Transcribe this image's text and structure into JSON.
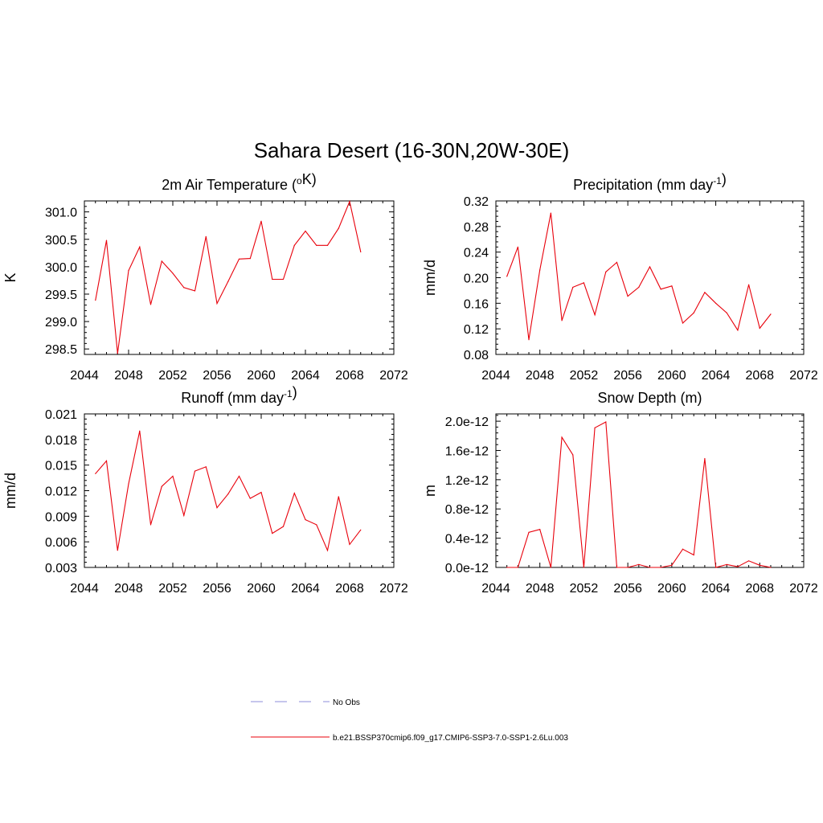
{
  "title": "Sahara Desert (16-30N,20W-30E)",
  "chart_data": [
    {
      "type": "line",
      "title": "2m Air Temperature (",
      "title_sup_pre": "o",
      "title_post": "K)",
      "title_sup": "",
      "title_end": "",
      "ylabel": "K",
      "xlim": [
        2044,
        2072
      ],
      "ylim": [
        298.4,
        301.2
      ],
      "xticks": [
        2044,
        2048,
        2052,
        2056,
        2060,
        2064,
        2068,
        2072
      ],
      "yticks": [
        298.5,
        299.0,
        299.5,
        300.0,
        300.5,
        301.0
      ],
      "ytick_labels": [
        "298.5",
        "299.0",
        "299.5",
        "300.0",
        "300.5",
        "301.0"
      ],
      "x": [
        2045,
        2046,
        2047,
        2048,
        2049,
        2050,
        2051,
        2052,
        2053,
        2054,
        2055,
        2056,
        2057,
        2058,
        2059,
        2060,
        2061,
        2062,
        2063,
        2064,
        2065,
        2066,
        2067,
        2068,
        2069
      ],
      "series": [
        {
          "color": "#e8000b",
          "values": [
            299.39,
            300.48,
            298.42,
            299.93,
            300.36,
            299.31,
            300.1,
            299.88,
            299.62,
            299.56,
            300.55,
            299.33,
            299.73,
            300.14,
            300.15,
            300.83,
            299.77,
            299.77,
            300.39,
            300.65,
            300.39,
            300.39,
            300.7,
            301.19,
            300.27
          ]
        }
      ]
    },
    {
      "type": "line",
      "title": "Precipitation (mm day",
      "title_sup_pre": "",
      "title_post": "",
      "title_sup": "-1",
      "title_end": ")",
      "ylabel": "mm/d",
      "xlim": [
        2044,
        2072
      ],
      "ylim": [
        0.08,
        0.32
      ],
      "xticks": [
        2044,
        2048,
        2052,
        2056,
        2060,
        2064,
        2068,
        2072
      ],
      "yticks": [
        0.08,
        0.12,
        0.16,
        0.2,
        0.24,
        0.28,
        0.32
      ],
      "ytick_labels": [
        "0.08",
        "0.12",
        "0.16",
        "0.20",
        "0.24",
        "0.28",
        "0.32"
      ],
      "x": [
        2045,
        2046,
        2047,
        2048,
        2049,
        2050,
        2051,
        2052,
        2053,
        2054,
        2055,
        2056,
        2057,
        2058,
        2059,
        2060,
        2061,
        2062,
        2063,
        2064,
        2065,
        2066,
        2067,
        2068,
        2069
      ],
      "series": [
        {
          "color": "#e8000b",
          "values": [
            0.202,
            0.248,
            0.103,
            0.212,
            0.301,
            0.133,
            0.185,
            0.192,
            0.142,
            0.209,
            0.224,
            0.171,
            0.185,
            0.217,
            0.182,
            0.187,
            0.129,
            0.145,
            0.177,
            0.16,
            0.145,
            0.118,
            0.189,
            0.121,
            0.143
          ]
        }
      ]
    },
    {
      "type": "line",
      "title": "Runoff (mm day",
      "title_sup_pre": "",
      "title_post": "",
      "title_sup": "-1",
      "title_end": ")",
      "ylabel": "mm/d",
      "xlim": [
        2044,
        2072
      ],
      "ylim": [
        0.003,
        0.021
      ],
      "xticks": [
        2044,
        2048,
        2052,
        2056,
        2060,
        2064,
        2068,
        2072
      ],
      "yticks": [
        0.003,
        0.006,
        0.009,
        0.012,
        0.015,
        0.018,
        0.021
      ],
      "ytick_labels": [
        "0.003",
        "0.006",
        "0.009",
        "0.012",
        "0.015",
        "0.018",
        "0.021"
      ],
      "x": [
        2045,
        2046,
        2047,
        2048,
        2049,
        2050,
        2051,
        2052,
        2053,
        2054,
        2055,
        2056,
        2057,
        2058,
        2059,
        2060,
        2061,
        2062,
        2063,
        2064,
        2065,
        2066,
        2067,
        2068,
        2069
      ],
      "series": [
        {
          "color": "#e8000b",
          "values": [
            0.014,
            0.0155,
            0.005,
            0.0128,
            0.019,
            0.008,
            0.0125,
            0.0137,
            0.0091,
            0.0143,
            0.0148,
            0.01,
            0.0116,
            0.0137,
            0.0111,
            0.0118,
            0.007,
            0.0078,
            0.0117,
            0.0086,
            0.008,
            0.005,
            0.0113,
            0.0057,
            0.0074
          ]
        }
      ]
    },
    {
      "type": "line",
      "title": "Snow Depth (m)",
      "title_sup_pre": "",
      "title_post": "",
      "title_sup": "",
      "title_end": "",
      "ylabel": "m",
      "xlim": [
        2044,
        2072
      ],
      "ylim": [
        0,
        2.1e-12
      ],
      "xticks": [
        2044,
        2048,
        2052,
        2056,
        2060,
        2064,
        2068,
        2072
      ],
      "yticks": [
        0,
        4e-13,
        8e-13,
        1.2e-12,
        1.6e-12,
        2e-12
      ],
      "ytick_labels": [
        "0.0e-12",
        "0.4e-12",
        "0.8e-12",
        "1.2e-12",
        "1.6e-12",
        "2.0e-12"
      ],
      "x": [
        2045,
        2046,
        2047,
        2048,
        2049,
        2050,
        2051,
        2052,
        2053,
        2054,
        2055,
        2056,
        2057,
        2058,
        2059,
        2060,
        2061,
        2062,
        2063,
        2064,
        2065,
        2066,
        2067,
        2068,
        2069
      ],
      "series": [
        {
          "color": "#e8000b",
          "values": [
            0,
            0,
            4.8e-13,
            5.2e-13,
            0,
            1.78e-12,
            1.54e-12,
            0,
            1.91e-12,
            1.99e-12,
            0,
            0,
            4e-14,
            0,
            0,
            3e-14,
            2.5e-13,
            1.7e-13,
            1.49e-12,
            0,
            4e-14,
            1e-14,
            9e-14,
            3e-14,
            0
          ]
        }
      ]
    }
  ],
  "legend": [
    {
      "label": "No Obs",
      "color": "#8d8ddb",
      "dash": "dashed"
    },
    {
      "label": "b.e21.BSSP370cmip6.f09_g17.CMIP6-SSP3-7.0-SSP1-2.6Lu.003",
      "color": "#e8000b",
      "dash": "solid"
    }
  ]
}
